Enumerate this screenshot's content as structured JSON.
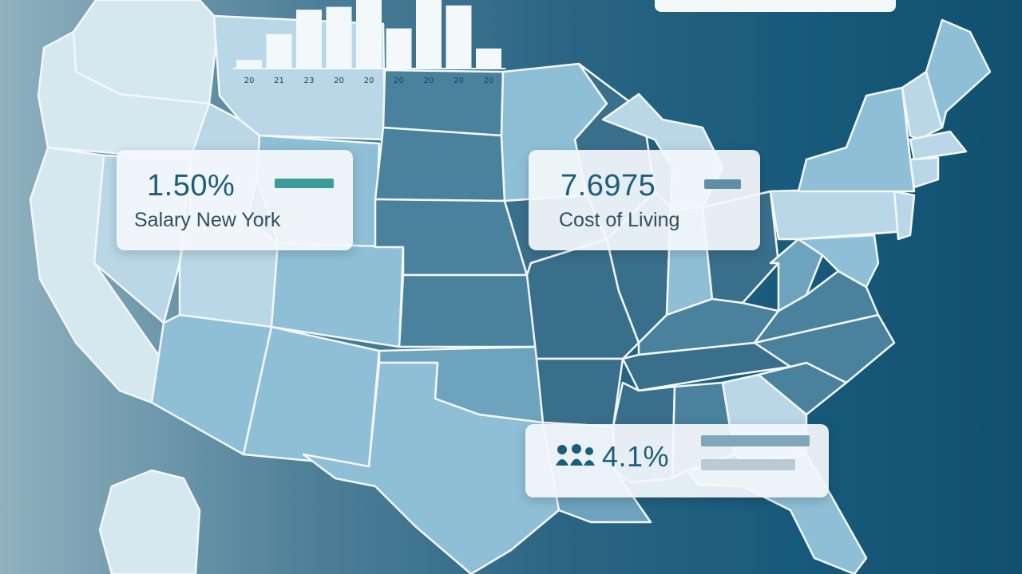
{
  "map": {
    "colors": {
      "light": "#d5e7ef",
      "pale": "#b9d7e6",
      "mid_light": "#8fbfd6",
      "mid": "#6ea3bd",
      "mid_dark": "#4a829e",
      "dark": "#3a6f8c",
      "border": "#f3f8fb"
    }
  },
  "mini_chart": {
    "chart_data": {
      "type": "bar",
      "categories": [
        "20",
        "21",
        "23",
        "20",
        "20",
        "20",
        "20",
        "20",
        "20"
      ],
      "values": [
        12,
        48,
        82,
        86,
        98,
        56,
        100,
        88,
        28
      ],
      "ylim": [
        0,
        100
      ],
      "bar_color": "#f3f8fb"
    }
  },
  "cards": {
    "salary": {
      "value": "1.50%",
      "label": "Salary New York",
      "bar_color": "#3d9a9a"
    },
    "cost": {
      "value": "7.6975",
      "label": "Cost of Living",
      "bar_color": "#5f8fa6"
    },
    "growth": {
      "value": "4.1%",
      "icon": "people-icon",
      "bar_color_1": "#7fa7b9",
      "bar_color_2": "#b8cad3"
    }
  }
}
